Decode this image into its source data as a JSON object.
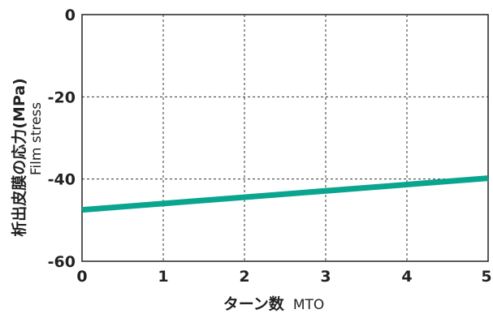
{
  "chart_data": {
    "type": "line",
    "xlabel": "ターン数",
    "xlabel_unit": "MTO",
    "ylabel": "析出皮膜の応力(MPa)",
    "ylabel_sub": "Film stress",
    "xlim": [
      0,
      5
    ],
    "ylim": [
      -60,
      0
    ],
    "x_ticks": [
      0,
      1,
      2,
      3,
      4,
      5
    ],
    "y_ticks": [
      0,
      -20,
      -40,
      -60
    ],
    "grid": true,
    "series": [
      {
        "color": "#0aa58e",
        "x": [
          0,
          5
        ],
        "y": [
          -47.5,
          -39.8
        ]
      }
    ]
  }
}
